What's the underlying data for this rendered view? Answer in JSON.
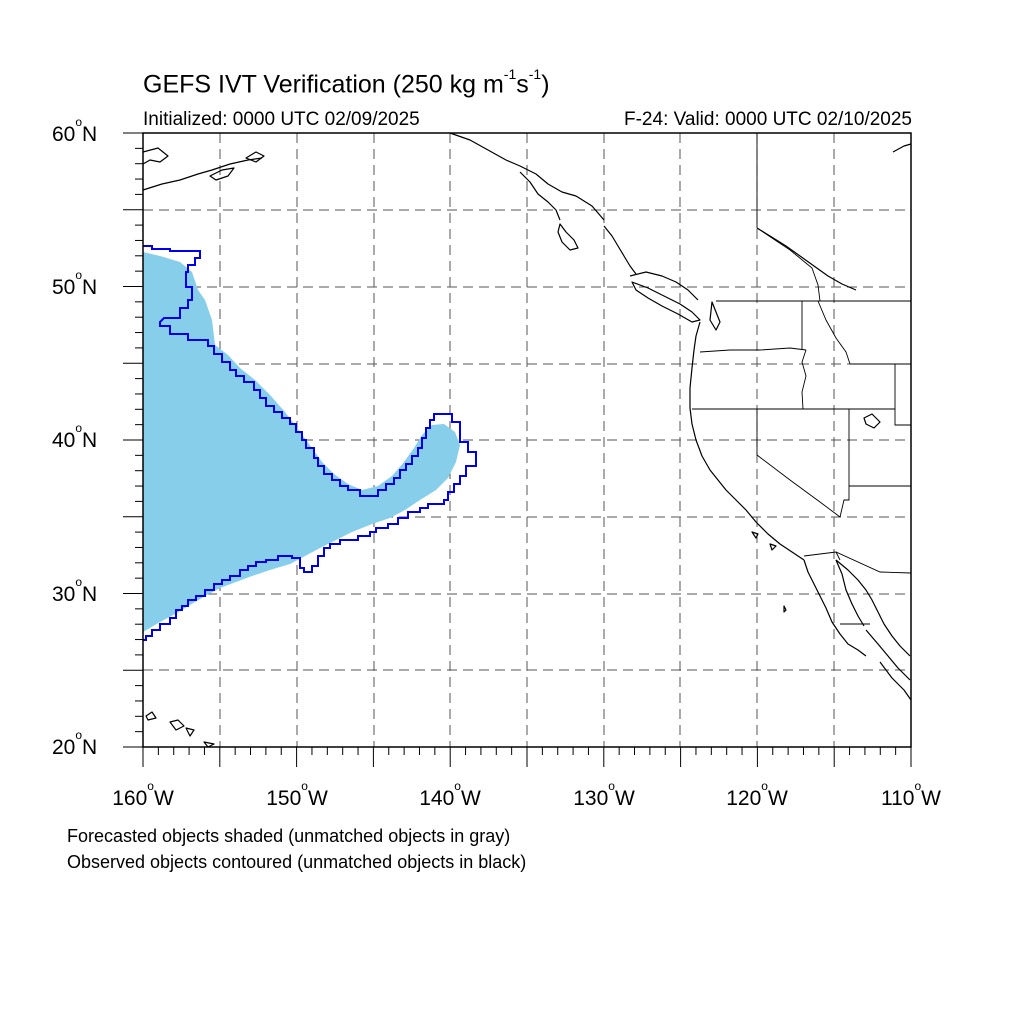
{
  "title": {
    "main": "GEFS IVT Verification (250 kg m",
    "sup1": "-1",
    "mid": "s",
    "sup2": "-1",
    "close": ")"
  },
  "subtitle": {
    "initialized": "Initialized: 0000 UTC 02/09/2025",
    "valid": "F-24: Valid: 0000 UTC 02/10/2025"
  },
  "axes": {
    "lat_labels": [
      {
        "num": "60",
        "hemi": "N"
      },
      {
        "num": "50",
        "hemi": "N"
      },
      {
        "num": "40",
        "hemi": "N"
      },
      {
        "num": "30",
        "hemi": "N"
      },
      {
        "num": "20",
        "hemi": "N"
      }
    ],
    "lon_labels": [
      {
        "num": "160",
        "hemi": "W"
      },
      {
        "num": "150",
        "hemi": "W"
      },
      {
        "num": "140",
        "hemi": "W"
      },
      {
        "num": "130",
        "hemi": "W"
      },
      {
        "num": "120",
        "hemi": "W"
      },
      {
        "num": "110",
        "hemi": "W"
      }
    ],
    "lat_range": [
      20,
      60
    ],
    "lon_range": [
      -160,
      -110
    ],
    "grid_spacing_deg": 5,
    "grid_style": "dashed"
  },
  "notes": {
    "forecast": "Forecasted objects shaded (unmatched objects in gray)",
    "observed": "Observed objects contoured (unmatched objects in black)"
  },
  "colors": {
    "forecast_fill": "#87ceeb",
    "observed_contour": "#0000ee",
    "coastline": "#000000",
    "grid": "#555555"
  }
}
